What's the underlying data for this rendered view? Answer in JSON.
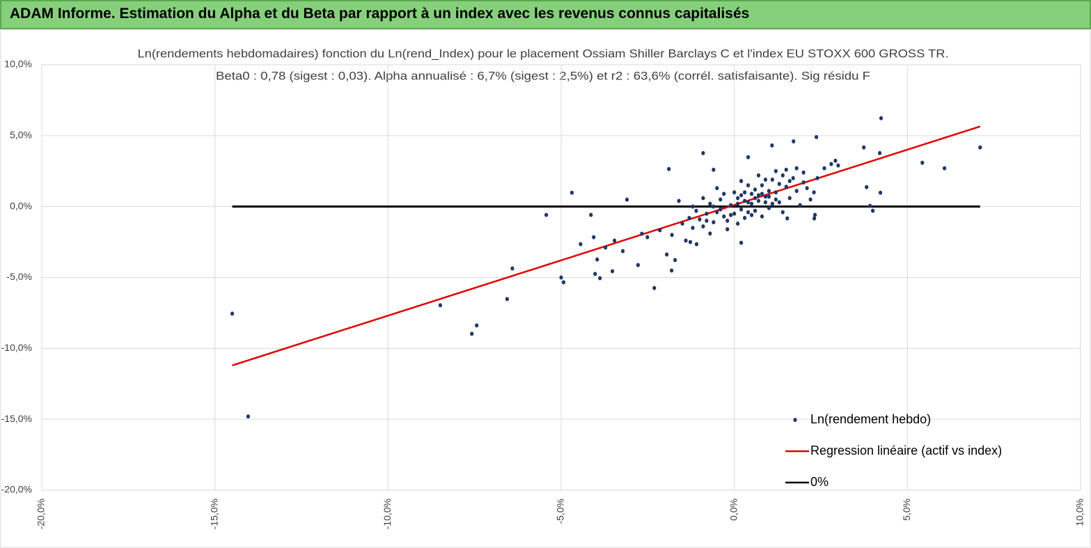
{
  "header": {
    "title": "ADAM Informe. Estimation du Alpha et du Beta par rapport à un index avec les revenus connus capitalisés"
  },
  "chart_data": {
    "type": "scatter",
    "title": "Ln(rendements hebdomadaires) fonction du Ln(rend_Index) pour le placement Ossiam Shiller Barclays C et l'index EU STOXX 600 GROSS TR.",
    "subtitle": "Beta0 : 0,78 (sigest : 0,03). Alpha annualisé : 6,7% (sigest : 2,5%) et r2 : 63,6% (corrél. satisfaisante). Sig résidu F",
    "xlim": [
      -20,
      10
    ],
    "xticks": [
      {
        "value": -20,
        "label": "-20,0%"
      },
      {
        "value": -15,
        "label": "-15,0%"
      },
      {
        "value": -10,
        "label": "-10,0%"
      },
      {
        "value": -5,
        "label": "-5,0%"
      },
      {
        "value": 0,
        "label": "0,0%"
      },
      {
        "value": 5,
        "label": "5,0%"
      },
      {
        "value": 10,
        "label": "10,0%"
      }
    ],
    "ylim": [
      -20,
      10
    ],
    "yticks": [
      {
        "value": -20,
        "label": "-20,0%"
      },
      {
        "value": -15,
        "label": "-15,0%"
      },
      {
        "value": -10,
        "label": "-10,0%"
      },
      {
        "value": -5,
        "label": "-5,0%"
      },
      {
        "value": 0,
        "label": "0,0%"
      },
      {
        "value": 5,
        "label": "5,0%"
      },
      {
        "value": 10,
        "label": "10,0%"
      }
    ],
    "grid": true,
    "legend": "lower right",
    "series": [
      {
        "name": "Ln(rendement hebdo)",
        "type": "scatter",
        "color": "#203864",
        "x": [
          -14.5,
          -14.04,
          -8.49,
          -7.58,
          -7.44,
          -6.56,
          -6.41,
          -5.43,
          -5.0,
          -4.93,
          -4.69,
          -4.44,
          -4.14,
          -4.06,
          -4.02,
          -3.96,
          -3.88,
          -3.72,
          -3.52,
          -3.46,
          -3.1,
          -3.22,
          -2.78,
          -2.67,
          -2.31,
          -1.89,
          -1.81,
          -1.71,
          -1.95,
          -2.15,
          -2.51,
          -0.9,
          -0.6,
          -1.09,
          -1.27,
          0.2,
          0.4,
          1.09,
          1.71,
          2.37,
          2.92,
          3.74,
          4.24,
          4.2,
          4.22,
          3.82,
          3.92,
          4.0,
          5.43,
          6.07,
          7.1,
          2.31,
          2.33,
          1.53,
          -1.5,
          -1.3,
          -1.2,
          -1.1,
          -1.0,
          -0.9,
          -0.8,
          -0.7,
          -0.6,
          -0.5,
          -0.4,
          -0.3,
          -0.2,
          -0.1,
          0.0,
          0.1,
          0.2,
          0.3,
          0.4,
          0.5,
          0.6,
          0.7,
          0.8,
          0.9,
          1.0,
          1.1,
          1.2,
          1.3,
          1.4,
          1.5,
          1.6,
          1.7,
          1.8,
          2.0,
          2.1,
          2.2,
          2.4,
          2.6,
          2.8,
          3.0,
          -1.8,
          -1.6,
          -1.4,
          -1.2,
          -0.9,
          -0.7,
          -0.5,
          -0.3,
          -0.2,
          0.0,
          0.1,
          0.2,
          0.3,
          0.4,
          0.5,
          0.6,
          0.7,
          0.8,
          0.9,
          1.0,
          1.1,
          1.2,
          1.3,
          1.4,
          1.5,
          1.6,
          1.8,
          1.9,
          2.0,
          2.3,
          0.1,
          0.3,
          0.5,
          0.7,
          0.9,
          -0.4,
          -0.6,
          -0.8,
          0.2,
          0.6,
          1.0,
          0.4,
          -0.1,
          1.2,
          0.8
        ],
        "values": [
          -7.55,
          -14.8,
          -6.96,
          -8.97,
          -8.38,
          -6.52,
          -4.36,
          -0.59,
          -5.0,
          -5.34,
          0.98,
          -2.65,
          -0.59,
          -2.16,
          -4.75,
          -3.73,
          -5.05,
          -2.89,
          -4.56,
          -2.4,
          0.49,
          -3.14,
          -4.12,
          -1.91,
          -5.74,
          2.65,
          -4.51,
          -3.77,
          -3.38,
          -1.67,
          -2.16,
          3.77,
          2.6,
          -2.65,
          -2.5,
          -2.55,
          3.48,
          4.31,
          4.6,
          4.9,
          3.23,
          4.17,
          6.23,
          3.77,
          0.98,
          1.37,
          0.05,
          -0.29,
          3.09,
          2.7,
          4.17,
          -0.83,
          -0.59,
          -0.83,
          -1.2,
          -0.8,
          -1.5,
          -0.3,
          -0.9,
          -1.4,
          -0.5,
          0.2,
          -1.1,
          -0.4,
          0.5,
          -0.7,
          -1.6,
          0.1,
          -0.5,
          0.6,
          -0.2,
          1.0,
          0.3,
          -0.6,
          1.2,
          0.4,
          1.5,
          0.7,
          -0.1,
          1.9,
          1.0,
          0.3,
          2.2,
          1.4,
          0.6,
          2.0,
          1.1,
          2.4,
          1.3,
          0.5,
          2.0,
          2.7,
          3.0,
          2.9,
          -2.0,
          0.4,
          -2.4,
          0.0,
          0.6,
          -1.9,
          1.3,
          0.9,
          -1.0,
          1.0,
          -1.2,
          1.8,
          -0.8,
          1.5,
          0.9,
          -0.3,
          2.2,
          -0.7,
          1.9,
          1.1,
          0.2,
          2.5,
          1.6,
          -0.4,
          2.6,
          1.8,
          2.7,
          0.1,
          1.7,
          1.0,
          0.2,
          0.4,
          0.2,
          0.8,
          0.3,
          -0.2,
          0.0,
          -1.0,
          0.8,
          0.6,
          0.7,
          -0.4,
          -0.6,
          0.5,
          0.9
        ]
      },
      {
        "name": "Regression linéaire (actif vs index)",
        "type": "line",
        "color": "#e00000",
        "x": [
          -14.5,
          7.1
        ],
        "values": [
          -11.2,
          5.65
        ]
      },
      {
        "name": "0%",
        "type": "line",
        "color": "#000000",
        "x": [
          -14.5,
          7.1
        ],
        "values": [
          0,
          0
        ]
      }
    ]
  }
}
